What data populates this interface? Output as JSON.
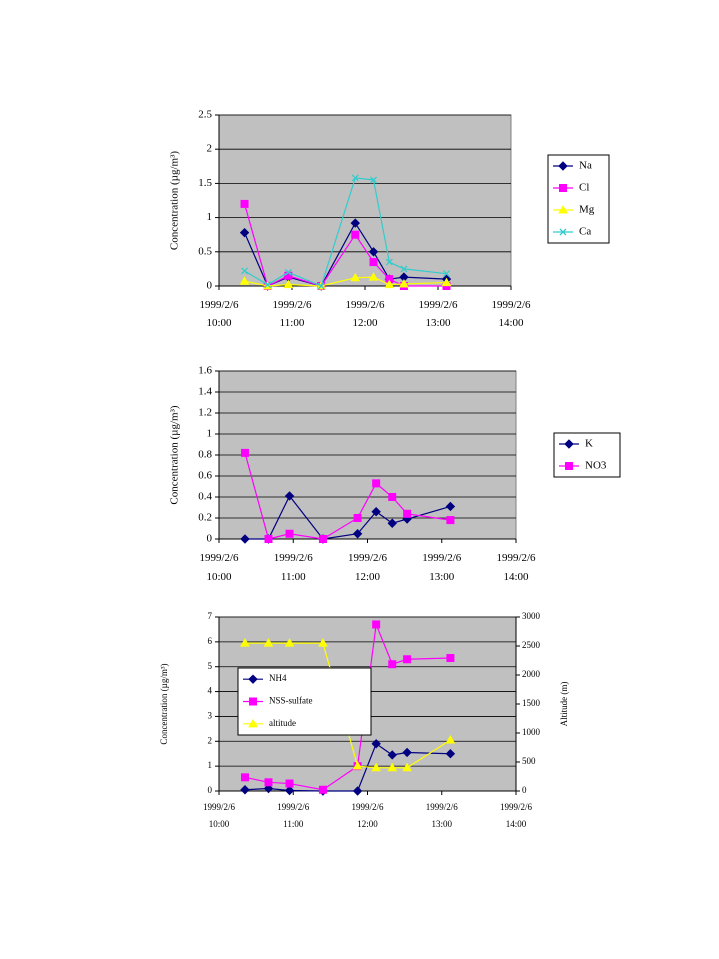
{
  "chart_data": [
    {
      "type": "line",
      "ylabel": "Concentration (µg/m³)",
      "x": [
        "1999/2/6 10:21",
        "1999/2/6 10:40",
        "1999/2/6 10:57",
        "1999/2/6 11:24",
        "1999/2/6 11:52",
        "1999/2/6 12:07",
        "1999/2/6 12:20",
        "1999/2/6 12:32",
        "1999/2/6 13:07"
      ],
      "xlim": [
        "1999/2/6 10:00",
        "1999/2/6 14:00"
      ],
      "xticks": [
        "1999/2/6 10:00",
        "1999/2/6 11:00",
        "1999/2/6 12:00",
        "1999/2/6 13:00",
        "1999/2/6 14:00"
      ],
      "ylim": [
        0,
        2.5
      ],
      "yticks": [
        0,
        0.5,
        1,
        1.5,
        2,
        2.5
      ],
      "grid": true,
      "legend": "right",
      "series": [
        {
          "name": "Na",
          "color": "#000080",
          "marker": "diamond",
          "values": [
            0.78,
            0,
            0.13,
            0,
            0.92,
            0.5,
            0.1,
            0.13,
            0.1
          ]
        },
        {
          "name": "Cl",
          "color": "#ff00ff",
          "marker": "square",
          "values": [
            1.2,
            0,
            0.15,
            0,
            0.75,
            0.35,
            0.1,
            0,
            0
          ]
        },
        {
          "name": "Mg",
          "color": "#ffff00",
          "marker": "triangle",
          "values": [
            0.07,
            0,
            0.02,
            0,
            0.12,
            0.13,
            0.02,
            0.03,
            0.05
          ]
        },
        {
          "name": "Ca",
          "color": "#33cccc",
          "marker": "x",
          "values": [
            0.22,
            0.02,
            0.2,
            0,
            1.58,
            1.55,
            0.35,
            0.25,
            0.18
          ]
        }
      ]
    },
    {
      "type": "line",
      "ylabel": "Concentration (µg/m³)",
      "x": [
        "1999/2/6 10:21",
        "1999/2/6 10:40",
        "1999/2/6 10:57",
        "1999/2/6 11:24",
        "1999/2/6 11:52",
        "1999/2/6 12:07",
        "1999/2/6 12:20",
        "1999/2/6 12:32",
        "1999/2/6 13:07"
      ],
      "xlim": [
        "1999/2/6 10:00",
        "1999/2/6 14:00"
      ],
      "xticks": [
        "1999/2/6 10:00",
        "1999/2/6 11:00",
        "1999/2/6 12:00",
        "1999/2/6 13:00",
        "1999/2/6 14:00"
      ],
      "ylim": [
        0,
        1.6
      ],
      "yticks": [
        0,
        0.2,
        0.4,
        0.6,
        0.8,
        1,
        1.2,
        1.4,
        1.6
      ],
      "grid": true,
      "legend": "right",
      "series": [
        {
          "name": "K",
          "color": "#000080",
          "marker": "diamond",
          "values": [
            0,
            0,
            0.41,
            0,
            0.05,
            0.26,
            0.15,
            0.19,
            0.31
          ]
        },
        {
          "name": "NO3",
          "color": "#ff00ff",
          "marker": "square",
          "values": [
            0.82,
            0,
            0.05,
            0,
            0.2,
            0.53,
            0.4,
            0.24,
            0.18
          ]
        }
      ]
    },
    {
      "type": "line",
      "ylabel": "Concentration (µg/m³)",
      "y2label": "Altitude (m)",
      "x": [
        "1999/2/6 10:21",
        "1999/2/6 10:40",
        "1999/2/6 10:57",
        "1999/2/6 11:24",
        "1999/2/6 11:52",
        "1999/2/6 12:07",
        "1999/2/6 12:20",
        "1999/2/6 12:32",
        "1999/2/6 13:07"
      ],
      "xlim": [
        "1999/2/6 10:00",
        "1999/2/6 14:00"
      ],
      "xticks": [
        "1999/2/6 10:00",
        "1999/2/6 11:00",
        "1999/2/6 12:00",
        "1999/2/6 13:00",
        "1999/2/6 14:00"
      ],
      "ylim": [
        0,
        7
      ],
      "yticks": [
        0,
        1,
        2,
        3,
        4,
        5,
        6,
        7
      ],
      "y2lim": [
        0,
        3000
      ],
      "y2ticks": [
        0,
        500,
        1000,
        1500,
        2000,
        2500,
        3000
      ],
      "grid": true,
      "legend": "inside",
      "series": [
        {
          "name": "NH4",
          "color": "#000080",
          "marker": "diamond",
          "values": [
            0.05,
            0.1,
            0.02,
            0,
            0,
            1.9,
            1.45,
            1.55,
            1.5
          ]
        },
        {
          "name": "NSS-sulfate",
          "color": "#ff00ff",
          "marker": "square",
          "values": [
            0.55,
            0.35,
            0.3,
            0.05,
            1.0,
            6.7,
            5.1,
            5.3,
            5.35
          ]
        },
        {
          "name": "altitude",
          "color": "#ffff00",
          "marker": "triangle",
          "axis": "y2",
          "values": [
            2550,
            2550,
            2550,
            2550,
            430,
            400,
            400,
            400,
            880
          ]
        }
      ]
    }
  ]
}
